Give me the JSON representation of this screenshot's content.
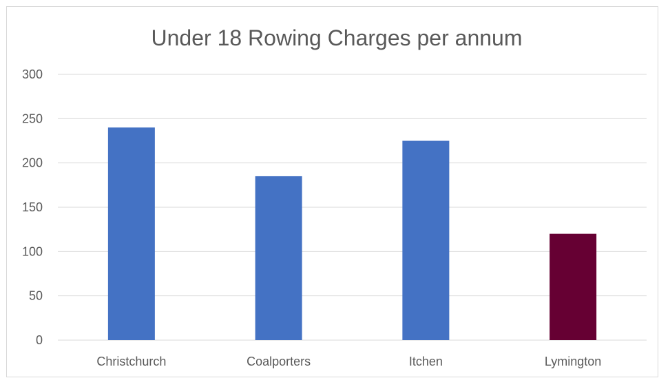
{
  "chart_data": {
    "type": "bar",
    "title": "Under 18 Rowing Charges per annum",
    "categories": [
      "Christchurch",
      "Coalporters",
      "Itchen",
      "Lymington"
    ],
    "values": [
      240,
      185,
      225,
      120
    ],
    "bar_colors": [
      "#4472c4",
      "#4472c4",
      "#4472c4",
      "#660033"
    ],
    "ylim": [
      0,
      300
    ],
    "yticks": [
      0,
      50,
      100,
      150,
      200,
      250,
      300
    ],
    "xlabel": "",
    "ylabel": "",
    "grid": true,
    "legend": "none"
  },
  "colors": {
    "gridline": "#d9d9d9",
    "axis_line": "#d9d9d9",
    "text": "#595959"
  }
}
